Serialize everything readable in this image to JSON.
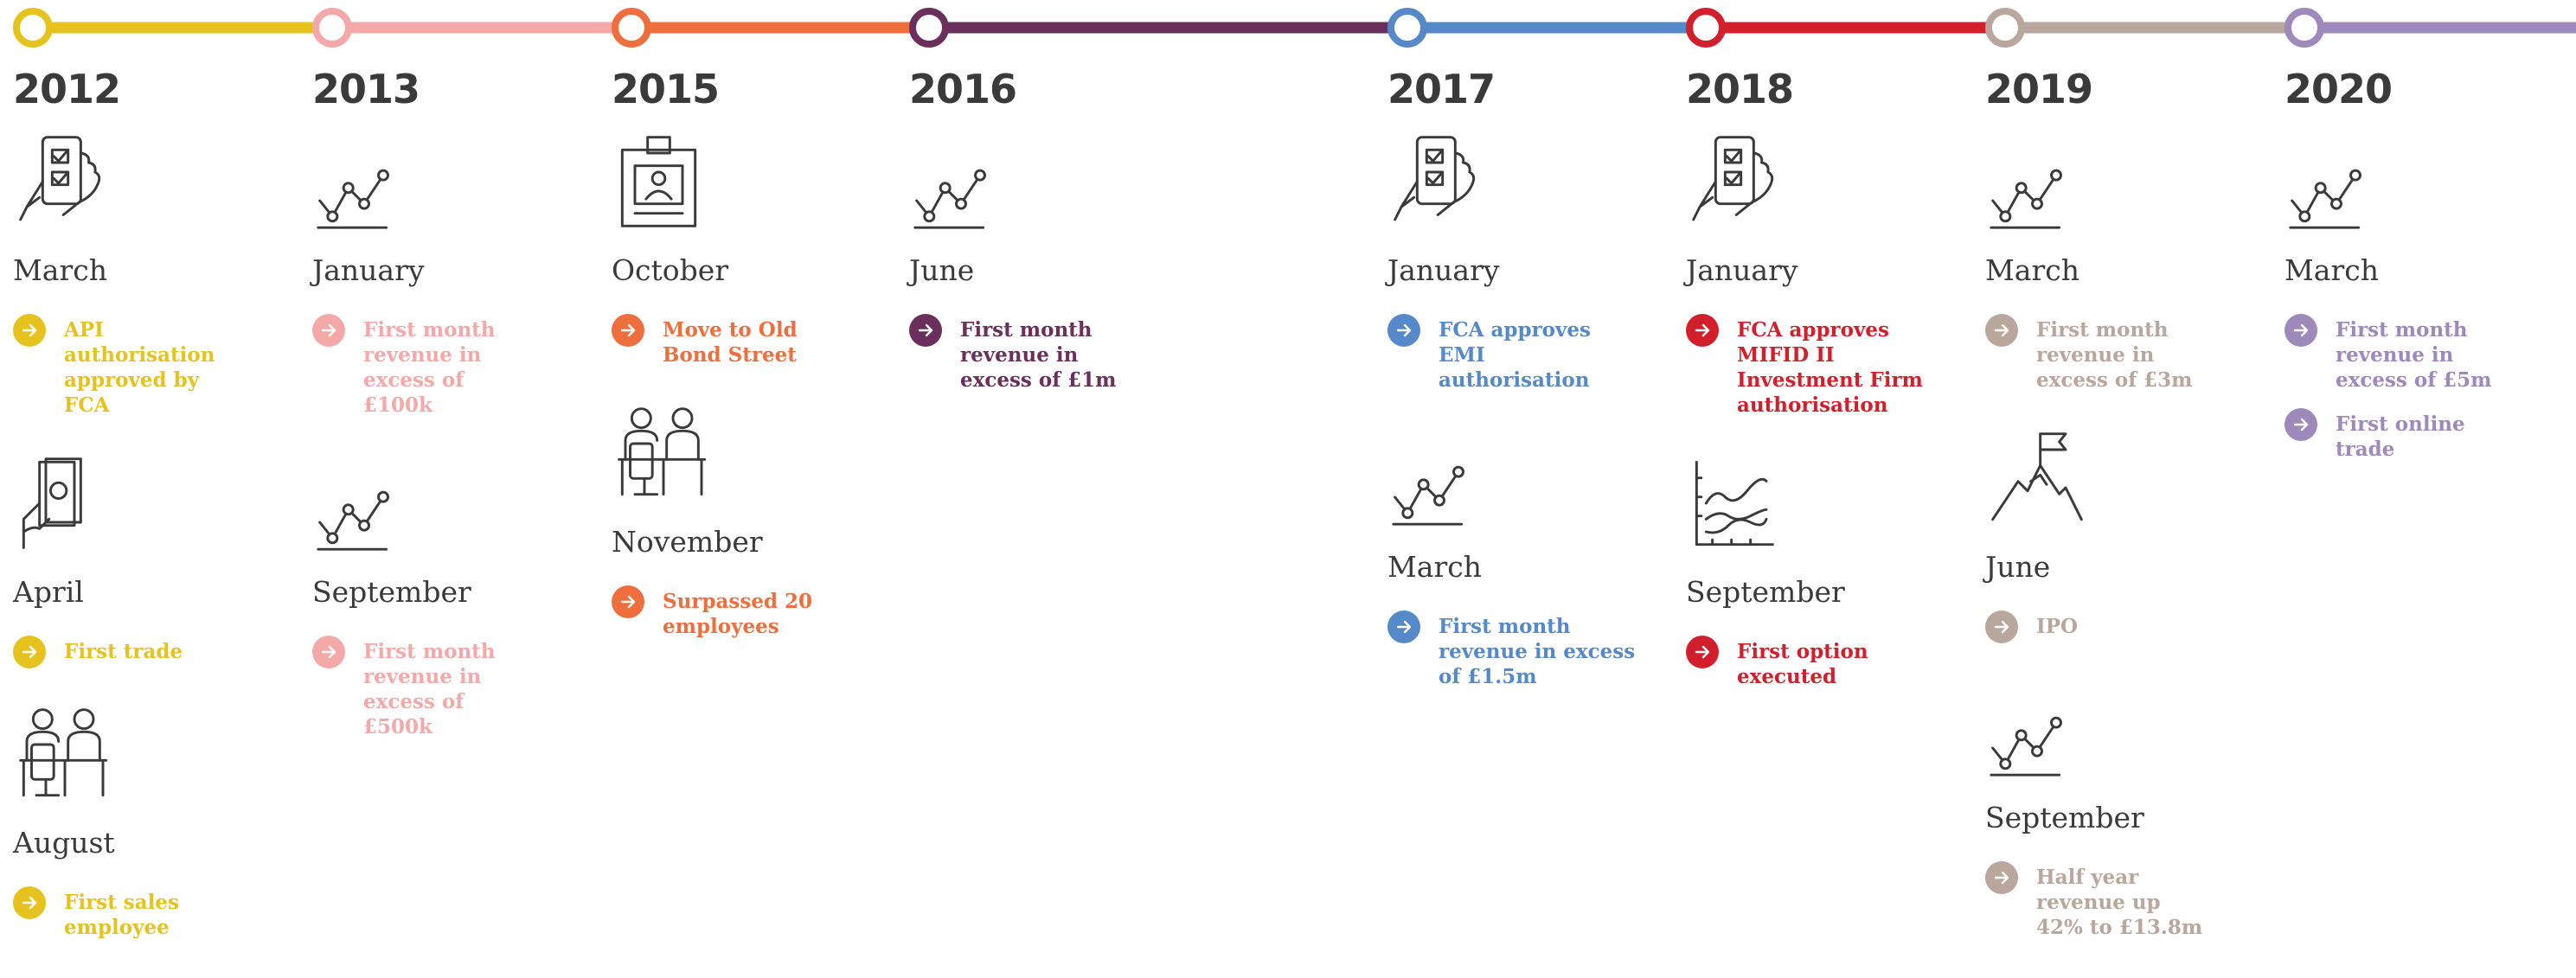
{
  "timeline": [
    {
      "year": "2012",
      "color": "#e6c21f",
      "events": [
        {
          "month": "March",
          "items": [
            "API authorisation approved by FCA"
          ]
        },
        {
          "month": "April",
          "items": [
            "First trade"
          ]
        },
        {
          "month": "August",
          "items": [
            "First sales employee"
          ]
        }
      ]
    },
    {
      "year": "2013",
      "color": "#f4a9a8",
      "events": [
        {
          "month": "January",
          "items": [
            "First month revenue in excess of £100k"
          ]
        },
        {
          "month": "September",
          "items": [
            "First month revenue in excess of £500k"
          ]
        }
      ]
    },
    {
      "year": "2015",
      "color": "#ee6e3d",
      "events": [
        {
          "month": "October",
          "items": [
            "Move to Old Bond Street"
          ]
        },
        {
          "month": "November",
          "items": [
            "Surpassed 20 employees"
          ]
        }
      ]
    },
    {
      "year": "2016",
      "color": "#6b2f5c",
      "events": [
        {
          "month": "June",
          "items": [
            "First month revenue in excess of £1m"
          ]
        }
      ]
    },
    {
      "year": "2017",
      "color": "#5689c9",
      "events": [
        {
          "month": "January",
          "items": [
            "FCA approves EMI authorisation"
          ]
        },
        {
          "month": "March",
          "items": [
            "First month revenue in excess of £1.5m"
          ]
        }
      ]
    },
    {
      "year": "2018",
      "color": "#d21f2b",
      "events": [
        {
          "month": "January",
          "items": [
            "FCA approves MIFID II Investment Firm authorisation"
          ]
        },
        {
          "month": "September",
          "items": [
            "First option executed"
          ]
        }
      ]
    },
    {
      "year": "2019",
      "color": "#b9a69d",
      "events": [
        {
          "month": "March",
          "items": [
            "First month revenue in excess of £3m"
          ]
        },
        {
          "month": "June",
          "items": [
            "IPO"
          ]
        },
        {
          "month": "September",
          "items": [
            "Half year revenue up 42% to £13.8m"
          ]
        }
      ]
    },
    {
      "year": "2020",
      "color": "#9e89bd",
      "events": [
        {
          "month": "March",
          "items": [
            "First month revenue in excess of £5m",
            "First online trade"
          ]
        }
      ]
    }
  ]
}
